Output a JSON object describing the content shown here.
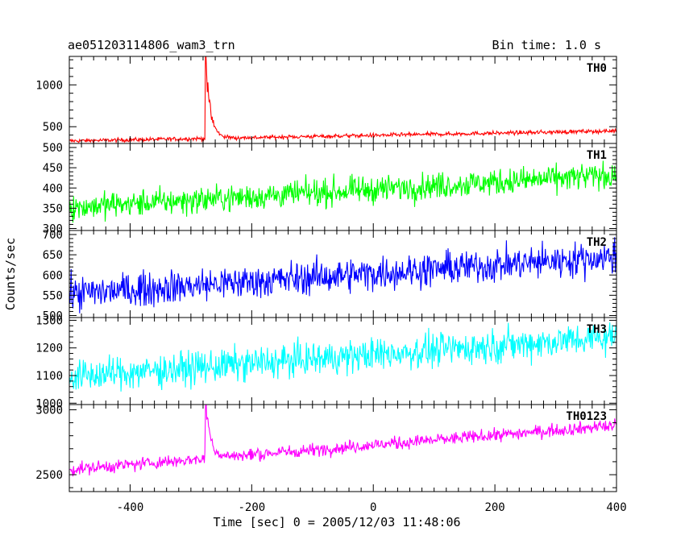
{
  "header": {
    "title": "ae051203114806_wam3_trn",
    "bin_time": "Bin time: 1.0 s"
  },
  "axes": {
    "xlabel": "Time [sec] 0 = 2005/12/03 11:48:06",
    "ylabel": "Counts/sec"
  },
  "chart_data": {
    "type": "line",
    "title": "ae051203114806_wam3_trn",
    "bin_time_s": 1.0,
    "xlabel": "Time [sec] 0 = 2005/12/03 11:48:06",
    "ylabel": "Counts/sec",
    "xlim": [
      -500,
      400
    ],
    "x_ticks": [
      -400,
      -200,
      0,
      200,
      400
    ],
    "grid": false,
    "panels": [
      {
        "name": "TH0",
        "color": "#ff0000",
        "ylim": [
          300,
          1340
        ],
        "y_ticks": [
          500,
          1000
        ],
        "baseline_start": 330,
        "baseline_end": 450,
        "noise": 22,
        "burst": {
          "start": -276,
          "peak": 1340,
          "decay_s": 8
        }
      },
      {
        "name": "TH1",
        "color": "#00ff00",
        "ylim": [
          295,
          510
        ],
        "y_ticks": [
          300,
          350,
          400,
          450,
          500
        ],
        "baseline_start": 352,
        "baseline_end": 432,
        "noise": 30,
        "burst": null
      },
      {
        "name": "TH2",
        "color": "#0000ff",
        "ylim": [
          495,
          710
        ],
        "y_ticks": [
          500,
          550,
          600,
          650,
          700
        ],
        "baseline_start": 553,
        "baseline_end": 645,
        "noise": 38,
        "burst": null
      },
      {
        "name": "TH3",
        "color": "#00ffff",
        "ylim": [
          995,
          1310
        ],
        "y_ticks": [
          1000,
          1100,
          1200,
          1300
        ],
        "baseline_start": 1095,
        "baseline_end": 1240,
        "noise": 55,
        "burst": null
      },
      {
        "name": "TH0123",
        "color": "#ff00ff",
        "ylim": [
          2370,
          3040
        ],
        "y_ticks": [
          2500,
          3000
        ],
        "baseline_start": 2540,
        "baseline_end": 2880,
        "noise": 45,
        "burst": {
          "start": -276,
          "peak": 3040,
          "decay_s": 8
        }
      }
    ]
  }
}
